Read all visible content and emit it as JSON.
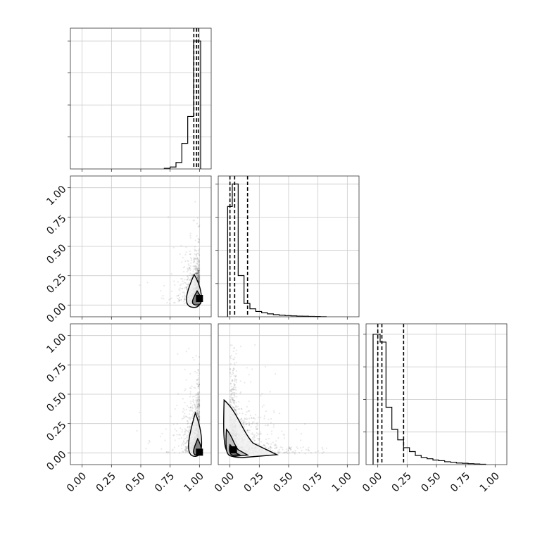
{
  "chart_data": {
    "type": "corner",
    "title": "",
    "grid": true,
    "tick_labels": [
      "0.00",
      "0.25",
      "0.50",
      "0.75",
      "1.00"
    ],
    "axis_range": [
      -0.1,
      1.1
    ],
    "params": [
      {
        "index": 0,
        "histogram": {
          "bin_edges": [
            0.7,
            0.75,
            0.8,
            0.85,
            0.9,
            0.95,
            0.97,
            0.99,
            1.01
          ],
          "heights": [
            0.005,
            0.015,
            0.05,
            0.2,
            0.41,
            1.0,
            1.0,
            1.0
          ],
          "ymax": 1.1,
          "quantiles": [
            0.952,
            0.975,
            0.99
          ]
        }
      },
      {
        "index": 1,
        "histogram": {
          "bin_edges": [
            -0.02,
            0.02,
            0.07,
            0.12,
            0.17,
            0.22,
            0.27,
            0.32,
            0.37,
            0.42,
            0.47,
            0.52,
            0.57,
            0.62,
            0.67,
            0.72,
            0.77,
            0.82
          ],
          "heights": [
            0.83,
            1.0,
            0.31,
            0.1,
            0.06,
            0.04,
            0.03,
            0.022,
            0.016,
            0.012,
            0.009,
            0.007,
            0.005,
            0.004,
            0.003,
            0.002,
            0.001
          ],
          "ymax": 1.06,
          "quantiles": [
            0.0,
            0.04,
            0.15
          ]
        }
      },
      {
        "index": 2,
        "histogram": {
          "bin_edges": [
            -0.04,
            0.02,
            0.07,
            0.12,
            0.17,
            0.22,
            0.27,
            0.32,
            0.37,
            0.42,
            0.47,
            0.52,
            0.57,
            0.62,
            0.67,
            0.72,
            0.77,
            0.82,
            0.87,
            0.92
          ],
          "heights": [
            1.0,
            0.94,
            0.44,
            0.27,
            0.19,
            0.13,
            0.1,
            0.07,
            0.055,
            0.045,
            0.035,
            0.03,
            0.022,
            0.018,
            0.012,
            0.01,
            0.007,
            0.005,
            0.003
          ],
          "ymax": 1.08,
          "quantiles": [
            0.0,
            0.035,
            0.22
          ]
        }
      }
    ],
    "pairs": [
      {
        "x_param": 0,
        "y_param": 1,
        "scatter_bulk": {
          "x_peak": 1.0,
          "y_peak": 0.04,
          "y_max": 0.9
        },
        "contours": [
          {
            "level": "outer",
            "x_range": [
              0.88,
              1.03
            ],
            "y_range": [
              -0.02,
              0.26
            ]
          },
          {
            "level": "inner",
            "x_range": [
              0.94,
              1.02
            ],
            "y_range": [
              0.0,
              0.12
            ]
          }
        ],
        "mode": {
          "x": 1.0,
          "y": 0.05
        }
      },
      {
        "x_param": 0,
        "y_param": 2,
        "scatter_bulk": {
          "x_peak": 1.0,
          "y_peak": 0.03,
          "y_max": 0.93
        },
        "contours": [
          {
            "level": "outer",
            "x_range": [
              0.9,
              1.03
            ],
            "y_range": [
              -0.03,
              0.34
            ]
          },
          {
            "level": "inner",
            "x_range": [
              0.95,
              1.02
            ],
            "y_range": [
              -0.02,
              0.12
            ]
          }
        ],
        "mode": {
          "x": 1.0,
          "y": 0.0
        }
      },
      {
        "x_param": 1,
        "y_param": 2,
        "scatter_bulk": {
          "x_peak": 0.03,
          "y_peak": 0.02,
          "y_max": 0.93
        },
        "contours": [
          {
            "level": "outer",
            "x_range": [
              -0.05,
              0.4
            ],
            "y_range": [
              -0.04,
              0.45
            ]
          },
          {
            "level": "middle",
            "x_range": [
              -0.03,
              0.15
            ],
            "y_range": [
              -0.03,
              0.2
            ]
          },
          {
            "level": "inner",
            "x_range": [
              0.0,
              0.08
            ],
            "y_range": [
              -0.02,
              0.07
            ]
          }
        ],
        "mode": {
          "x": 0.03,
          "y": 0.02
        }
      }
    ]
  }
}
